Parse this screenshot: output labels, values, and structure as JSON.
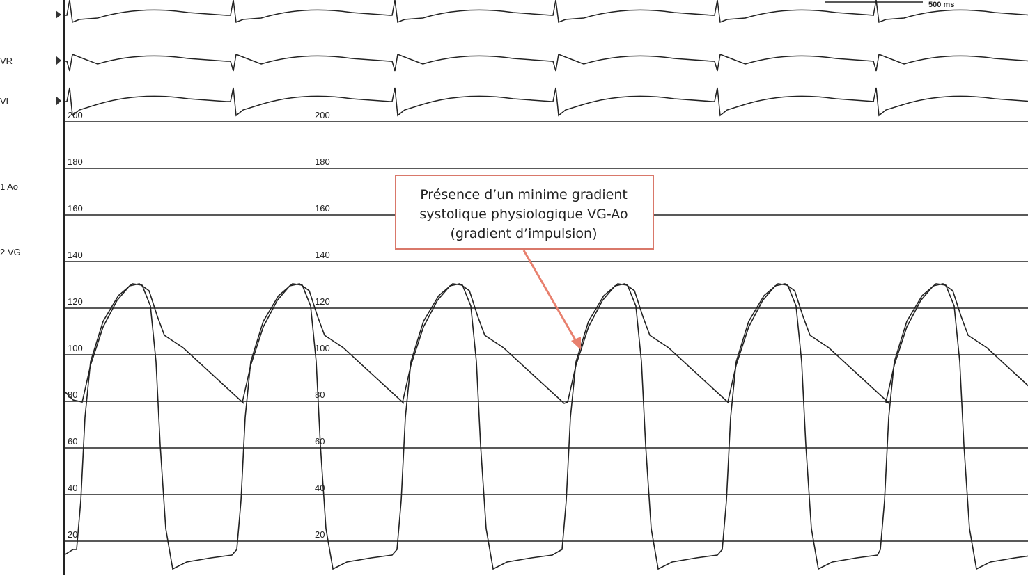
{
  "leads": [
    "VR",
    "VL",
    "1 Ao",
    "2 VG"
  ],
  "scale_ticks": [
    200,
    180,
    160,
    140,
    120,
    100,
    80,
    60,
    40,
    20
  ],
  "time_scale": "500 ms",
  "annotation": [
    "Présence d’un minime gradient",
    "systolique physiologique VG-Ao",
    "(gradient d’impulsion)"
  ]
}
